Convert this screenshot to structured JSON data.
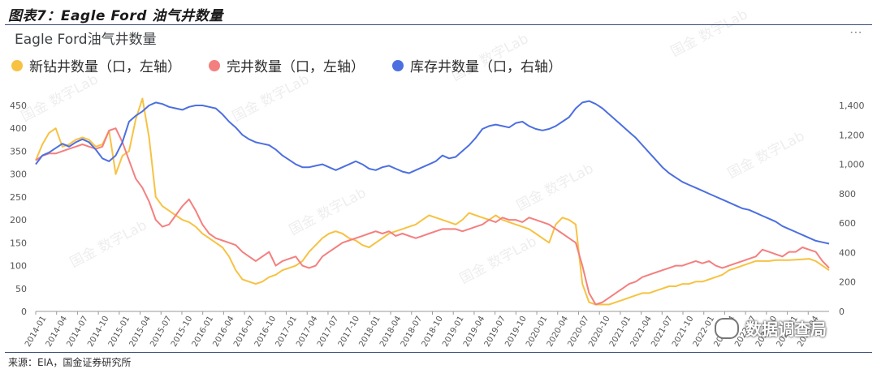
{
  "figure_title": "图表7：Eagle Ford 油气井数量",
  "source": "来源：EIA，国金证券研究所",
  "watermark": "国金 数字Lab",
  "brand": "数据调查局",
  "menu_icon": "more-dots-icon",
  "colors": {
    "new": "#f7c242",
    "completed": "#f47f7f",
    "inventory": "#4c6fe0",
    "axis": "#666666",
    "grid": "#e6e6e6"
  },
  "chart_data": {
    "type": "line",
    "title": "Eagle Ford油气井数量",
    "x_ticks": [
      "2014-01",
      "2014-04",
      "2014-07",
      "2014-10",
      "2015-01",
      "2015-04",
      "2015-07",
      "2015-10",
      "2016-01",
      "2016-04",
      "2016-07",
      "2016-10",
      "2017-01",
      "2017-04",
      "2017-07",
      "2017-10",
      "2018-01",
      "2018-04",
      "2018-07",
      "2018-10",
      "2019-01",
      "2019-04",
      "2019-07",
      "2019-10",
      "2020-01",
      "2020-04",
      "2020-07",
      "2020-10",
      "2021-01",
      "2021-04",
      "2021-07",
      "2021-10",
      "2022-01",
      "2022-04",
      "2022-07",
      "2022-10",
      "2023-01",
      "2023-04"
    ],
    "y_left": {
      "min": 0,
      "max": 450,
      "ticks": [
        0,
        50,
        100,
        150,
        200,
        250,
        300,
        350,
        400,
        450
      ]
    },
    "y_right": {
      "min": 0,
      "max": 1400,
      "ticks": [
        "0",
        "200",
        "400",
        "600",
        "800",
        "1,000",
        "1,200",
        "1,400"
      ]
    },
    "series": [
      {
        "name": "新钻井数量（口，左轴）",
        "axis": "left",
        "color": "#f7c242",
        "values": [
          330,
          365,
          390,
          400,
          360,
          365,
          375,
          380,
          375,
          360,
          365,
          395,
          300,
          340,
          350,
          420,
          465,
          380,
          250,
          230,
          220,
          210,
          200,
          195,
          185,
          170,
          160,
          150,
          140,
          120,
          90,
          70,
          65,
          60,
          65,
          75,
          80,
          90,
          95,
          100,
          110,
          130,
          145,
          160,
          170,
          175,
          170,
          160,
          155,
          145,
          140,
          150,
          160,
          170,
          175,
          180,
          185,
          190,
          200,
          210,
          205,
          200,
          195,
          190,
          200,
          215,
          210,
          205,
          200,
          210,
          200,
          195,
          190,
          185,
          180,
          170,
          160,
          150,
          190,
          205,
          200,
          190,
          60,
          20,
          15,
          15,
          15,
          20,
          25,
          30,
          35,
          40,
          40,
          45,
          50,
          55,
          55,
          60,
          60,
          65,
          65,
          70,
          75,
          80,
          90,
          95,
          100,
          105,
          110,
          110,
          110,
          112,
          112,
          112,
          113,
          114,
          115,
          110,
          100,
          90
        ]
      },
      {
        "name": "完井数量（口，左轴）",
        "axis": "left",
        "color": "#f47f7f",
        "values": [
          330,
          340,
          345,
          345,
          350,
          355,
          360,
          365,
          360,
          355,
          360,
          395,
          400,
          370,
          330,
          290,
          270,
          240,
          200,
          185,
          190,
          210,
          230,
          245,
          220,
          190,
          170,
          160,
          155,
          150,
          145,
          130,
          120,
          110,
          120,
          130,
          100,
          110,
          115,
          120,
          100,
          95,
          100,
          120,
          130,
          140,
          150,
          155,
          160,
          165,
          170,
          175,
          170,
          175,
          165,
          170,
          165,
          160,
          165,
          170,
          175,
          180,
          180,
          180,
          175,
          180,
          185,
          190,
          200,
          195,
          205,
          200,
          200,
          195,
          205,
          200,
          195,
          190,
          180,
          170,
          160,
          150,
          100,
          40,
          15,
          20,
          30,
          40,
          50,
          60,
          65,
          75,
          80,
          85,
          90,
          95,
          100,
          100,
          105,
          110,
          105,
          110,
          100,
          95,
          100,
          105,
          110,
          115,
          120,
          135,
          130,
          125,
          120,
          130,
          130,
          140,
          135,
          130,
          110,
          95
        ]
      },
      {
        "name": "库存井数量（口，右轴）",
        "axis": "right",
        "color": "#4c6fe0",
        "values": [
          1000,
          1060,
          1080,
          1110,
          1140,
          1120,
          1150,
          1170,
          1150,
          1100,
          1040,
          1020,
          1060,
          1150,
          1290,
          1330,
          1360,
          1400,
          1420,
          1410,
          1390,
          1380,
          1370,
          1390,
          1400,
          1400,
          1390,
          1380,
          1340,
          1290,
          1250,
          1200,
          1170,
          1150,
          1140,
          1130,
          1100,
          1060,
          1030,
          1000,
          980,
          980,
          990,
          1000,
          980,
          960,
          980,
          1000,
          1020,
          1000,
          970,
          960,
          980,
          990,
          970,
          950,
          940,
          960,
          980,
          1000,
          1020,
          1060,
          1040,
          1050,
          1090,
          1130,
          1180,
          1240,
          1260,
          1270,
          1260,
          1250,
          1280,
          1290,
          1260,
          1240,
          1230,
          1240,
          1260,
          1290,
          1320,
          1380,
          1420,
          1430,
          1410,
          1380,
          1340,
          1300,
          1260,
          1220,
          1180,
          1130,
          1080,
          1030,
          980,
          940,
          910,
          880,
          860,
          840,
          820,
          800,
          780,
          760,
          740,
          720,
          700,
          690,
          670,
          650,
          630,
          610,
          580,
          560,
          540,
          520,
          500,
          480,
          470,
          460
        ]
      }
    ]
  }
}
